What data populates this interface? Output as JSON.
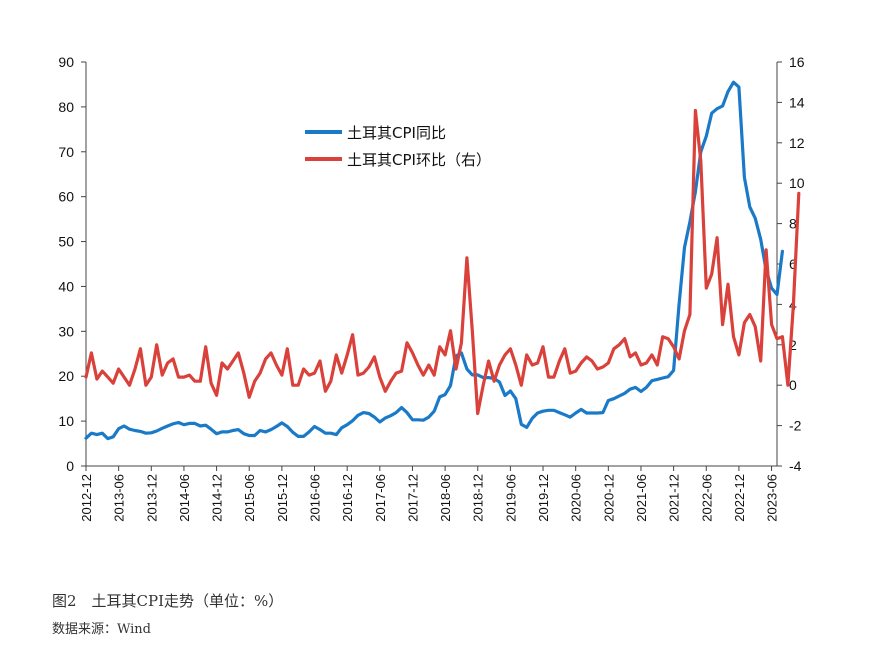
{
  "caption": "图2　土耳其CPI走势（单位：%）",
  "source": "数据来源：Wind",
  "chart_data": {
    "type": "line",
    "title": "",
    "xlabel": "",
    "ylabel": "",
    "ylim_left": [
      0,
      90
    ],
    "ylim_right": [
      -4,
      16
    ],
    "yticks_left": [
      0,
      10,
      20,
      30,
      40,
      50,
      60,
      70,
      80,
      90
    ],
    "yticks_right": [
      -4,
      -2,
      0,
      2,
      4,
      6,
      8,
      10,
      12,
      14,
      16
    ],
    "xticks": [
      "2012-12",
      "2013-06",
      "2013-12",
      "2014-06",
      "2014-12",
      "2015-06",
      "2015-12",
      "2016-06",
      "2016-12",
      "2017-06",
      "2017-12",
      "2018-06",
      "2018-12",
      "2019-06",
      "2019-12",
      "2020-06",
      "2020-12",
      "2021-06",
      "2021-12",
      "2022-06",
      "2022-12",
      "2023-06"
    ],
    "grid": false,
    "legend": "upper-center",
    "x_start": "2012-12",
    "x_end": "2023-07",
    "series": [
      {
        "name": "土耳其CPI同比",
        "axis": "left",
        "color": "#1a7ac7",
        "values": [
          6.2,
          7.3,
          7.0,
          7.3,
          6.1,
          6.5,
          8.3,
          8.9,
          8.2,
          7.9,
          7.7,
          7.3,
          7.4,
          7.8,
          8.4,
          8.9,
          9.4,
          9.7,
          9.2,
          9.5,
          9.5,
          8.9,
          9.1,
          8.2,
          7.2,
          7.6,
          7.6,
          7.9,
          8.1,
          7.2,
          6.8,
          6.8,
          7.9,
          7.6,
          8.1,
          8.8,
          9.6,
          8.8,
          7.5,
          6.6,
          6.6,
          7.6,
          8.8,
          8.1,
          7.3,
          7.3,
          7.0,
          8.5,
          9.2,
          10.1,
          11.3,
          11.9,
          11.7,
          10.9,
          9.8,
          10.7,
          11.2,
          11.9,
          13.0,
          11.9,
          10.3,
          10.3,
          10.2,
          10.9,
          12.2,
          15.4,
          15.9,
          17.9,
          24.5,
          25.2,
          21.6,
          20.3,
          20.3,
          19.7,
          19.7,
          19.5,
          18.7,
          15.7,
          16.7,
          15.0,
          9.3,
          8.6,
          10.6,
          11.8,
          12.2,
          12.4,
          12.4,
          11.9,
          11.4,
          10.9,
          11.8,
          12.6,
          11.8,
          11.8,
          11.8,
          11.9,
          14.6,
          15.0,
          15.6,
          16.2,
          17.1,
          17.5,
          16.6,
          17.5,
          19.0,
          19.3,
          19.6,
          19.9,
          21.3,
          36.1,
          48.7,
          54.4,
          61.1,
          70.0,
          73.5,
          78.6,
          79.6,
          80.2,
          83.4,
          85.5,
          84.4,
          64.3,
          57.7,
          55.2,
          50.5,
          43.7,
          39.6,
          38.2,
          47.8
        ]
      },
      {
        "name": "土耳其CPI环比（右）",
        "axis": "right",
        "color": "#d9413a",
        "values": [
          0.4,
          1.6,
          0.3,
          0.7,
          0.4,
          0.1,
          0.8,
          0.4,
          0.0,
          0.8,
          1.8,
          0.0,
          0.4,
          2.0,
          0.5,
          1.1,
          1.3,
          0.4,
          0.4,
          0.5,
          0.2,
          0.2,
          1.9,
          0.1,
          -0.5,
          1.1,
          0.8,
          1.2,
          1.6,
          0.6,
          -0.6,
          0.2,
          0.6,
          1.3,
          1.6,
          1.0,
          0.5,
          1.8,
          0.0,
          0.0,
          0.8,
          0.5,
          0.6,
          1.2,
          -0.3,
          0.2,
          1.5,
          0.6,
          1.5,
          2.5,
          0.5,
          0.6,
          0.9,
          1.4,
          0.4,
          -0.3,
          0.2,
          0.6,
          0.7,
          2.1,
          1.6,
          1.0,
          0.5,
          1.0,
          0.5,
          1.9,
          1.5,
          2.7,
          0.8,
          2.1,
          6.3,
          2.7,
          -1.4,
          0.0,
          1.2,
          0.2,
          1.0,
          1.5,
          1.8,
          1.0,
          0.0,
          1.5,
          1.0,
          1.1,
          1.9,
          0.4,
          0.4,
          1.2,
          1.8,
          0.6,
          0.7,
          1.1,
          1.4,
          1.2,
          0.8,
          0.9,
          1.1,
          1.8,
          2.0,
          2.3,
          1.4,
          1.6,
          1.0,
          1.1,
          1.5,
          1.0,
          2.4,
          2.3,
          1.9,
          1.3,
          2.7,
          3.5,
          13.6,
          11.1,
          4.8,
          5.5,
          7.3,
          3.0,
          5.0,
          2.4,
          1.5,
          3.1,
          3.5,
          2.9,
          1.2,
          6.7,
          3.0,
          2.3,
          2.4,
          0.0,
          3.9,
          9.5
        ]
      }
    ]
  }
}
